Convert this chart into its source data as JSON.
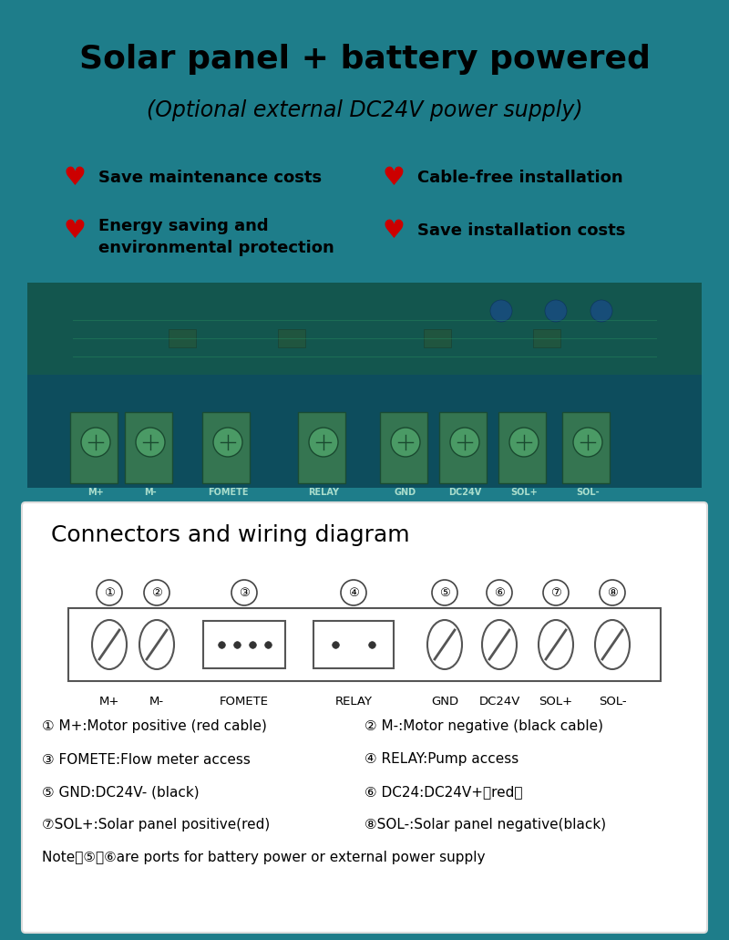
{
  "teal_color": "#1e7d8a",
  "title": "Solar panel + battery powered",
  "subtitle": "(Optional external DC24V power supply)",
  "title_color": "#000000",
  "subtitle_color": "#000000",
  "heart_color": "#cc0000",
  "features_left_1": "Save maintenance costs",
  "features_left_2": "Energy saving and\nenvironmental protection",
  "features_right_1": "Cable-free installation",
  "features_right_2": "Save installation costs",
  "diagram_title": "Connectors and wiring diagram",
  "connector_labels": [
    "M+",
    "M-",
    "FOMETE",
    "RELAY",
    "GND",
    "DC24V",
    "SOL+",
    "SOL-"
  ],
  "connector_numbers": [
    "①",
    "②",
    "③",
    "④",
    "⑤",
    "⑥",
    "⑦",
    "⑧"
  ],
  "desc_left_1": "① M+:Motor positive (red cable)",
  "desc_left_2": "③ FOMETE:Flow meter access",
  "desc_left_3": "⑤ GND:DC24V- (black)",
  "desc_left_4": "⑦SOL+:Solar panel positive(red)",
  "desc_right_1": "② M-:Motor negative (black cable)",
  "desc_right_2": "④ RELAY:Pump access",
  "desc_right_3": "⑥ DC24:DC24V+（red）",
  "desc_right_4": "⑧SOL-:Solar panel negative(black)",
  "note": "Note：⑤、⑥are ports for battery power or external power supply",
  "white_panel_color": "#ffffff",
  "dark_board_color": "#0d5060",
  "board_overlay": "#1a6070"
}
